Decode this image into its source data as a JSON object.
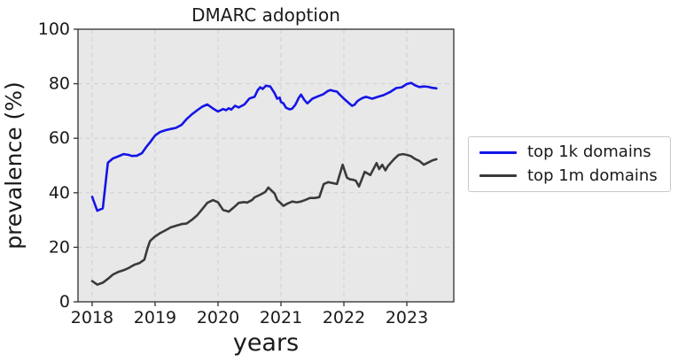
{
  "title": "DMARC adoption",
  "colors": {
    "series_top_1k": "#1414e8",
    "series_top_1m": "#3a3a3a",
    "plot_background": "#e8e8e8",
    "gridline": "#cfcfcf",
    "spine": "#2f2f2f",
    "text": "#1a1a1a",
    "legend_border": "#c9c9c9"
  },
  "legend": {
    "position": "outside-right-center",
    "items": [
      {
        "label": "top 1k domains",
        "color": "#1414e8"
      },
      {
        "label": "top 1m domains",
        "color": "#3a3a3a"
      }
    ]
  },
  "chart_data": {
    "type": "line",
    "title": "DMARC adoption",
    "xlabel": "years",
    "ylabel": "prevalence (%)",
    "xlim": [
      2017.775,
      2023.746
    ],
    "ylim": [
      0,
      100
    ],
    "x_ticks": [
      2018,
      2019,
      2020,
      2021,
      2022,
      2023
    ],
    "y_ticks": [
      0,
      20,
      40,
      60,
      80,
      100
    ],
    "grid": "dashed both axes",
    "legend_position": "center right, outside axes",
    "series": [
      {
        "name": "top 1k domains",
        "color": "#1414e8",
        "x": [
          2018.0,
          2018.08,
          2018.17,
          2018.25,
          2018.33,
          2018.42,
          2018.5,
          2018.58,
          2018.63,
          2018.71,
          2018.79,
          2018.86,
          2018.92,
          2019.0,
          2019.08,
          2019.17,
          2019.25,
          2019.33,
          2019.42,
          2019.5,
          2019.58,
          2019.67,
          2019.75,
          2019.83,
          2019.92,
          2020.0,
          2020.08,
          2020.13,
          2020.17,
          2020.21,
          2020.27,
          2020.33,
          2020.42,
          2020.5,
          2020.58,
          2020.63,
          2020.67,
          2020.71,
          2020.76,
          2020.83,
          2020.9,
          2020.94,
          2020.98,
          2021.0,
          2021.04,
          2021.08,
          2021.14,
          2021.18,
          2021.23,
          2021.28,
          2021.32,
          2021.37,
          2021.42,
          2021.5,
          2021.58,
          2021.67,
          2021.75,
          2021.79,
          2021.83,
          2021.89,
          2021.93,
          2022.0,
          2022.08,
          2022.13,
          2022.17,
          2022.21,
          2022.25,
          2022.3,
          2022.35,
          2022.45,
          2022.54,
          2022.63,
          2022.73,
          2022.83,
          2022.92,
          2023.0,
          2023.07,
          2023.13,
          2023.2,
          2023.27,
          2023.33,
          2023.4,
          2023.47
        ],
        "y": [
          38.5,
          33.4,
          34.3,
          51.0,
          52.6,
          53.4,
          54.2,
          53.9,
          53.5,
          53.6,
          54.5,
          56.8,
          58.5,
          61.0,
          62.3,
          63.0,
          63.4,
          63.8,
          64.9,
          67.0,
          68.7,
          70.3,
          71.6,
          72.4,
          70.9,
          69.8,
          70.7,
          70.3,
          71.0,
          70.5,
          71.9,
          71.3,
          72.4,
          74.6,
          75.2,
          77.6,
          78.7,
          78.1,
          79.3,
          79.0,
          76.5,
          74.5,
          74.9,
          73.3,
          72.8,
          71.2,
          70.6,
          70.9,
          72.3,
          74.7,
          76.0,
          74.1,
          72.8,
          74.5,
          75.3,
          76.1,
          77.4,
          77.7,
          77.4,
          77.1,
          76.1,
          74.5,
          72.9,
          71.9,
          72.3,
          73.5,
          74.2,
          74.8,
          75.2,
          74.5,
          75.2,
          75.8,
          76.9,
          78.4,
          78.7,
          79.9,
          80.3,
          79.4,
          78.8,
          79.0,
          78.9,
          78.5,
          78.3
        ]
      },
      {
        "name": "top 1m domains",
        "color": "#3a3a3a",
        "x": [
          2018.0,
          2018.08,
          2018.17,
          2018.25,
          2018.33,
          2018.42,
          2018.5,
          2018.58,
          2018.67,
          2018.75,
          2018.83,
          2018.88,
          2018.92,
          2019.0,
          2019.08,
          2019.17,
          2019.25,
          2019.33,
          2019.42,
          2019.5,
          2019.58,
          2019.67,
          2019.75,
          2019.83,
          2019.92,
          2020.0,
          2020.08,
          2020.17,
          2020.25,
          2020.33,
          2020.42,
          2020.46,
          2020.54,
          2020.58,
          2020.67,
          2020.75,
          2020.8,
          2020.9,
          2020.94,
          2021.0,
          2021.04,
          2021.11,
          2021.18,
          2021.25,
          2021.32,
          2021.39,
          2021.46,
          2021.54,
          2021.61,
          2021.68,
          2021.75,
          2021.89,
          2021.98,
          2022.05,
          2022.1,
          2022.14,
          2022.19,
          2022.24,
          2022.33,
          2022.42,
          2022.52,
          2022.56,
          2022.61,
          2022.66,
          2022.7,
          2022.76,
          2022.8,
          2022.87,
          2022.94,
          2023.0,
          2023.06,
          2023.13,
          2023.2,
          2023.27,
          2023.34,
          2023.41,
          2023.47
        ],
        "y": [
          7.6,
          6.3,
          7.0,
          8.4,
          10.0,
          11.0,
          11.6,
          12.4,
          13.6,
          14.2,
          15.5,
          19.7,
          22.3,
          24.0,
          25.2,
          26.3,
          27.3,
          27.9,
          28.5,
          28.7,
          30.0,
          31.8,
          34.0,
          36.3,
          37.3,
          36.5,
          33.7,
          33.1,
          34.6,
          36.3,
          36.6,
          36.4,
          37.3,
          38.3,
          39.3,
          40.3,
          41.9,
          39.7,
          37.4,
          36.1,
          35.2,
          36.1,
          36.8,
          36.5,
          36.8,
          37.4,
          38.1,
          38.1,
          38.4,
          43.2,
          43.9,
          43.2,
          50.3,
          45.5,
          44.9,
          44.8,
          44.4,
          42.3,
          47.7,
          46.5,
          50.9,
          48.7,
          50.3,
          48.2,
          49.8,
          51.4,
          52.4,
          53.9,
          54.2,
          53.9,
          53.5,
          52.4,
          51.7,
          50.3,
          51.1,
          51.9,
          52.3
        ]
      }
    ]
  }
}
